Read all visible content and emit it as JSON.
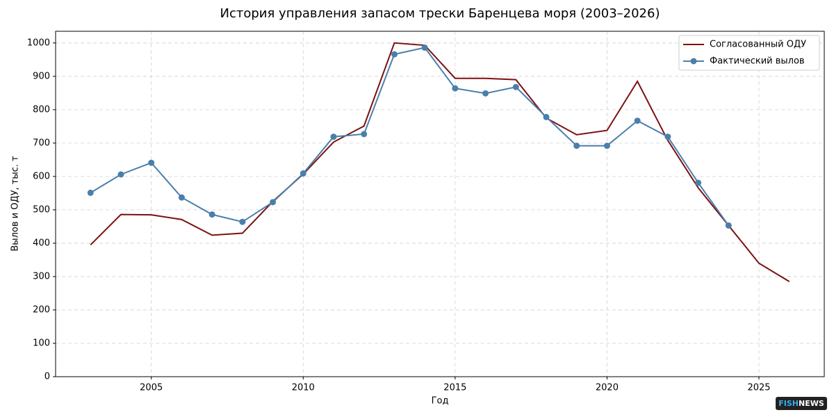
{
  "chart_data": {
    "type": "line",
    "title": "История управления запасом трески Баренцева моря (2003–2026)",
    "xlabel": "Год",
    "ylabel": "Вылов и ОДУ, тыс. т",
    "x": [
      2003,
      2004,
      2005,
      2006,
      2007,
      2008,
      2009,
      2010,
      2011,
      2012,
      2013,
      2014,
      2015,
      2016,
      2017,
      2018,
      2019,
      2020,
      2021,
      2022,
      2023,
      2024,
      2025,
      2026
    ],
    "series": [
      {
        "name": "Согласованный ОДУ",
        "color": "#7b1010",
        "marker": false,
        "values": [
          395,
          486,
          485,
          471,
          424,
          430,
          525,
          607,
          703,
          751,
          1000,
          993,
          894,
          894,
          890,
          775,
          725,
          738,
          885,
          708,
          566,
          453,
          340,
          285
        ]
      },
      {
        "name": "Фактический вылов",
        "color": "#4a7fab",
        "marker": true,
        "values": [
          551,
          606,
          641,
          537,
          486,
          464,
          523,
          609,
          719,
          727,
          966,
          986,
          864,
          849,
          868,
          778,
          692,
          692,
          767,
          719,
          581,
          453,
          null,
          null
        ]
      }
    ],
    "xlim": [
      2001.85,
      2027.15
    ],
    "xticks": [
      2005,
      2010,
      2015,
      2020,
      2025
    ],
    "ylim": [
      0,
      1035
    ],
    "yticks": [
      0,
      100,
      200,
      300,
      400,
      500,
      600,
      700,
      800,
      900,
      1000
    ],
    "grid": true,
    "legend": "upper right",
    "watermark": [
      "FISH",
      "NEWS"
    ]
  }
}
